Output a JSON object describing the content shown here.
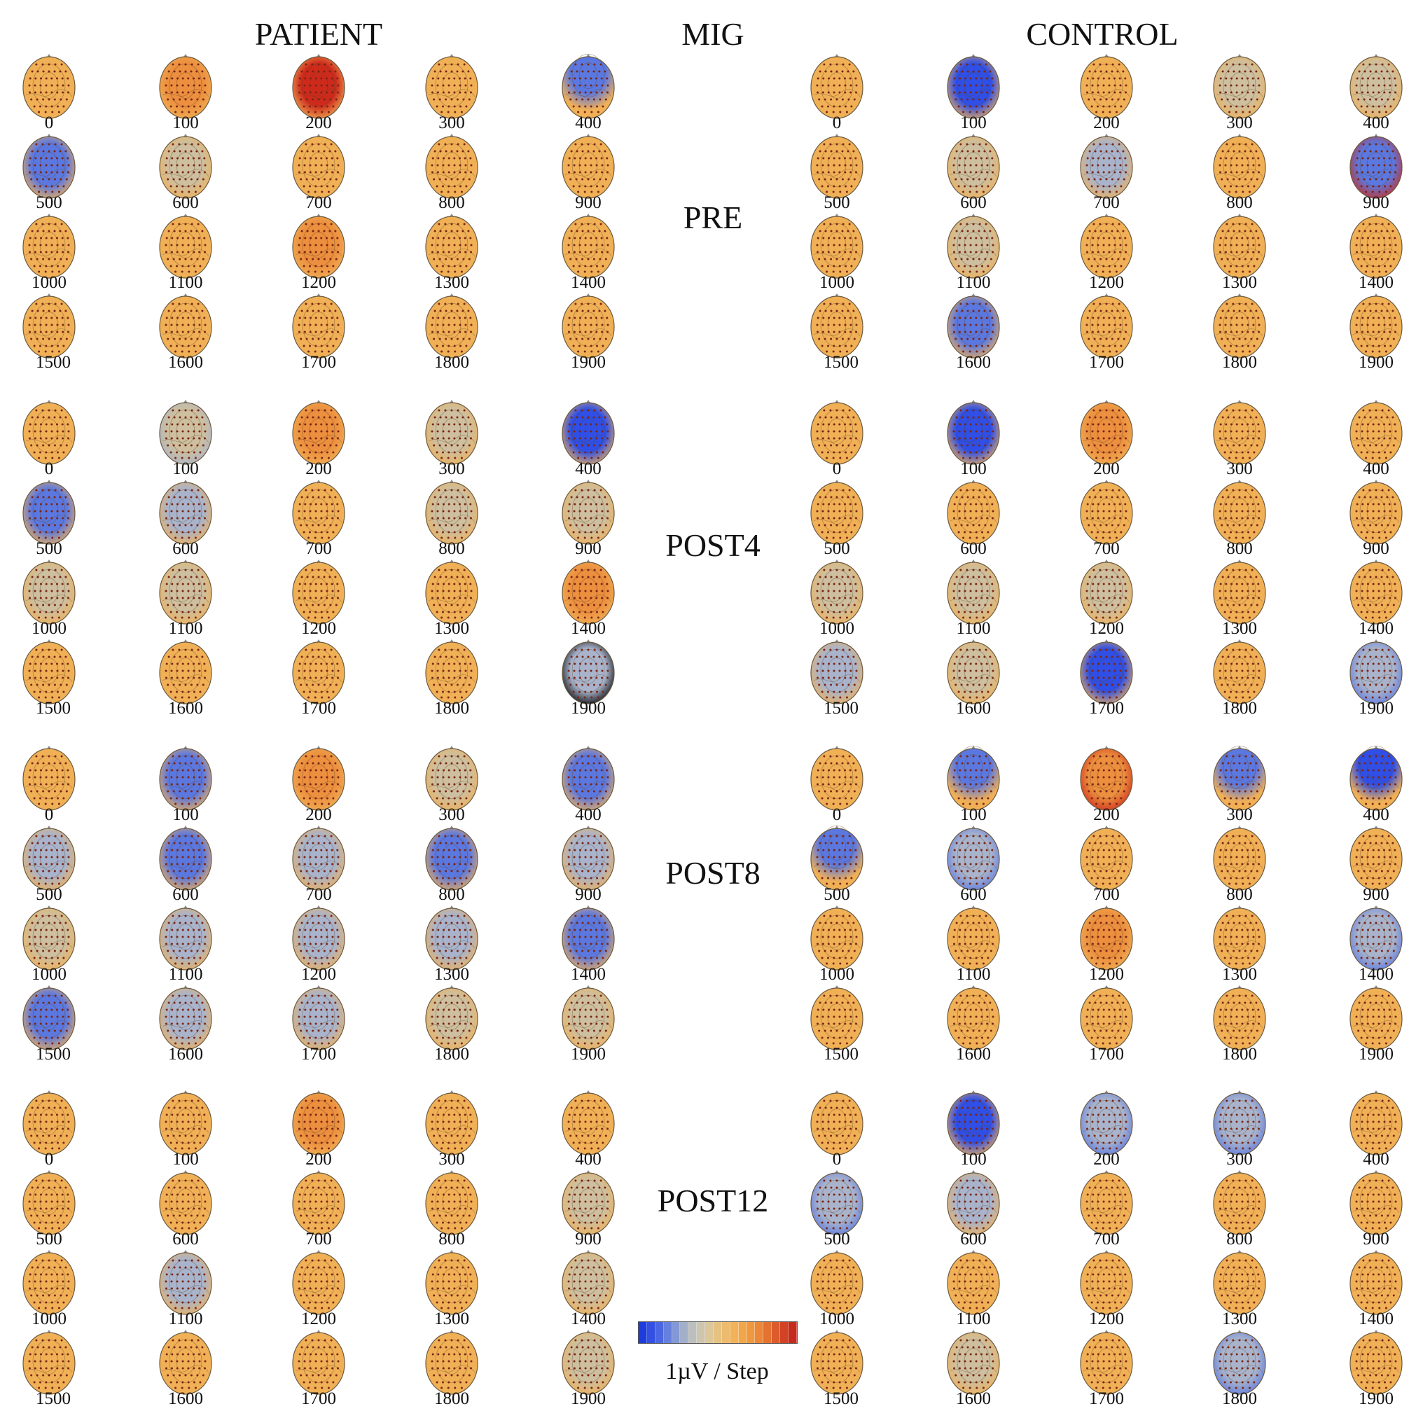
{
  "headers": {
    "patient": "PATIENT",
    "mig": "MIG",
    "control": "CONTROL"
  },
  "sessions": [
    "PRE",
    "POST4",
    "POST8",
    "POST12"
  ],
  "time_labels": [
    "0",
    "100",
    "200",
    "300",
    "400",
    "500",
    "600",
    "700",
    "800",
    "900",
    "1000",
    "1100",
    "1200",
    "1300",
    "1400",
    "1500",
    "1600",
    "1700",
    "1800",
    "1900"
  ],
  "colorbar": {
    "label": "1µV / Step",
    "colors": [
      "#1e3cdc",
      "#3350e0",
      "#4a66e2",
      "#6680de",
      "#8398d6",
      "#a2afc8",
      "#bcbfbd",
      "#cdc6ac",
      "#dbc79a",
      "#e5c281",
      "#edbb6d",
      "#f1b25a",
      "#f1a64c",
      "#ee9842",
      "#ea873a",
      "#e47231",
      "#dc5b2a",
      "#d24224",
      "#c52a1e"
    ]
  },
  "palette": {
    "O": "#f0b056",
    "W": "#ec8f3e",
    "R": "#cd2a1c",
    "N": "#cdbf9f",
    "L": "#a9b4cc",
    "B": "#5b78e0",
    "D": "#2f4fe6",
    "electrode": "#7a2614",
    "contour": "#5a4526"
  },
  "maps": {
    "patient": {
      "PRE": [
        "O",
        "W",
        "R",
        "O",
        "TB",
        "B",
        "N",
        "O",
        "O",
        "O",
        "O",
        "O",
        "W",
        "O",
        "O",
        "O",
        "O",
        "O",
        "O",
        "O"
      ],
      "POST4": [
        "O",
        "NL",
        "W",
        "N",
        "D",
        "B",
        "L",
        "O",
        "N",
        "N",
        "N",
        "N",
        "O",
        "O",
        "W",
        "O",
        "O",
        "O",
        "O",
        "LT"
      ],
      "POST8": [
        "O",
        "B",
        "W",
        "N",
        "B",
        "L",
        "B",
        "L",
        "B",
        "L",
        "N",
        "L",
        "L",
        "L",
        "B",
        "B",
        "L",
        "L",
        "N",
        "N"
      ],
      "POST12": [
        "O",
        "O",
        "W",
        "O",
        "O",
        "O",
        "O",
        "O",
        "O",
        "N",
        "O",
        "L",
        "O",
        "O",
        "N",
        "O",
        "O",
        "O",
        "O",
        "N"
      ]
    },
    "control": {
      "PRE": [
        "O",
        "D",
        "O",
        "N",
        "N",
        "O",
        "N",
        "L",
        "O",
        "BR",
        "O",
        "N",
        "O",
        "O",
        "O",
        "O",
        "B",
        "O",
        "O",
        "O"
      ],
      "POST4": [
        "O",
        "D",
        "W",
        "O",
        "O",
        "O",
        "O",
        "O",
        "O",
        "O",
        "N",
        "N",
        "N",
        "O",
        "O",
        "L",
        "N",
        "D",
        "O",
        "LB"
      ],
      "POST8": [
        "O",
        "TB",
        "WR",
        "TB",
        "TD",
        "TB",
        "LB",
        "O",
        "O",
        "O",
        "O",
        "O",
        "W",
        "O",
        "LB",
        "O",
        "O",
        "O",
        "O",
        "O"
      ],
      "POST12": [
        "O",
        "D",
        "LB",
        "LB",
        "O",
        "LB",
        "L",
        "O",
        "O",
        "O",
        "O",
        "O",
        "O",
        "O",
        "O",
        "O",
        "N",
        "O",
        "LB",
        "O"
      ]
    }
  }
}
